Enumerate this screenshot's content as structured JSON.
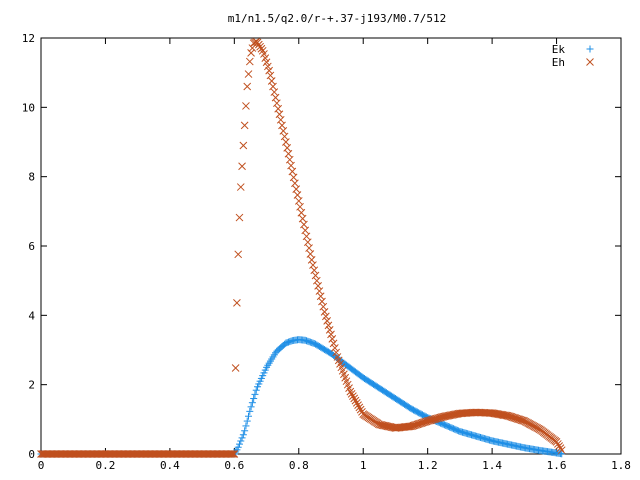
{
  "chart_data": {
    "type": "scatter",
    "title": "m1/n1.5/q2.0/r-+.37-j193/M0.7/512",
    "xlabel": "",
    "ylabel": "",
    "xlim": [
      0,
      1.8
    ],
    "ylim": [
      0,
      12
    ],
    "x_ticks": [
      "0",
      "0.2",
      "0.4",
      "0.6",
      "0.8",
      "1",
      "1.2",
      "1.4",
      "1.6",
      "1.8"
    ],
    "y_ticks": [
      "0",
      "2",
      "4",
      "6",
      "8",
      "10",
      "12"
    ],
    "grid": false,
    "legend_position": "top-right",
    "series": [
      {
        "name": "Ek",
        "marker": "plus",
        "color": "#1f8fe6",
        "x": [
          0.0,
          0.2,
          0.4,
          0.6,
          0.61,
          0.63,
          0.65,
          0.67,
          0.7,
          0.73,
          0.76,
          0.78,
          0.8,
          0.82,
          0.85,
          0.9,
          0.95,
          1.0,
          1.05,
          1.1,
          1.15,
          1.2,
          1.3,
          1.4,
          1.5,
          1.55,
          1.6,
          1.62
        ],
        "y": [
          0,
          0,
          0,
          0,
          0.15,
          0.6,
          1.3,
          1.9,
          2.5,
          2.95,
          3.2,
          3.27,
          3.3,
          3.28,
          3.18,
          2.9,
          2.55,
          2.2,
          1.9,
          1.6,
          1.3,
          1.05,
          0.65,
          0.38,
          0.18,
          0.1,
          0.03,
          0
        ]
      },
      {
        "name": "Eh",
        "marker": "x",
        "color": "#c0501f",
        "x": [
          0.0,
          0.2,
          0.4,
          0.6,
          0.605,
          0.61,
          0.615,
          0.62,
          0.63,
          0.64,
          0.65,
          0.66,
          0.67,
          0.69,
          0.71,
          0.73,
          0.76,
          0.8,
          0.84,
          0.88,
          0.92,
          0.96,
          1.0,
          1.05,
          1.1,
          1.15,
          1.2,
          1.25,
          1.3,
          1.35,
          1.4,
          1.45,
          1.5,
          1.55,
          1.6,
          1.62
        ],
        "y": [
          0,
          0,
          0,
          0,
          3.1,
          5.2,
          6.6,
          7.7,
          9.2,
          10.6,
          11.5,
          11.85,
          11.9,
          11.6,
          11.0,
          10.2,
          9.0,
          7.3,
          5.6,
          4.1,
          2.8,
          1.8,
          1.15,
          0.85,
          0.75,
          0.8,
          0.95,
          1.08,
          1.17,
          1.2,
          1.18,
          1.1,
          0.95,
          0.7,
          0.35,
          0.05
        ]
      }
    ]
  }
}
